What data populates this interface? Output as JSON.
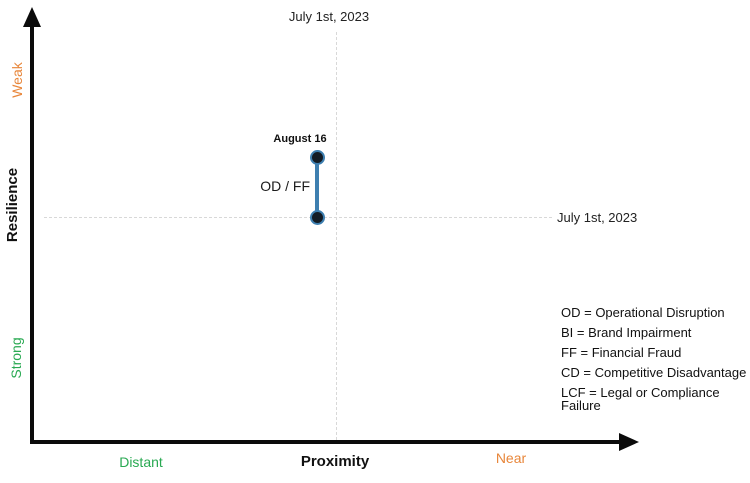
{
  "chart_data": {
    "type": "scatter",
    "title": "",
    "axes": {
      "x": {
        "label": "Proximity",
        "min_label": "Distant",
        "max_label": "Near"
      },
      "y": {
        "label": "Resilience",
        "top_label": "Weak",
        "bottom_label": "Strong"
      }
    },
    "reference_lines": {
      "vertical": {
        "label": "July 1st, 2023",
        "x_fraction": 0.5
      },
      "horizontal": {
        "label": "July 1st, 2023",
        "y_fraction": 0.5
      }
    },
    "series": [
      {
        "name": "OD / FF",
        "points": [
          {
            "date": "July 1st, 2023",
            "x_fraction": 0.5,
            "y_fraction": 0.5,
            "note": "baseline at intersection of July 1st reference lines"
          },
          {
            "date": "August 16",
            "x_fraction": 0.5,
            "y_fraction": 0.36,
            "note": "moved upward toward Weak resilience, same proximity"
          }
        ],
        "point_date_label": "August 16"
      }
    ],
    "legend": [
      "OD = Operational Disruption",
      "BI = Brand Impairment",
      "FF = Financial Fraud",
      "CD = Competitive Disadvantage",
      "LCF = Legal or Compliance Failure"
    ],
    "grid": "dashed reference lines only",
    "legend_position": "bottom-right"
  },
  "colors": {
    "accent_orange": "#E8863A",
    "accent_green": "#29A952",
    "line_blue": "#3E7FB0",
    "point_fill": "#131C25",
    "axis_black": "#0B0B0B",
    "gridline_gray": "#D8D8D8",
    "text_dark": "#222222"
  }
}
